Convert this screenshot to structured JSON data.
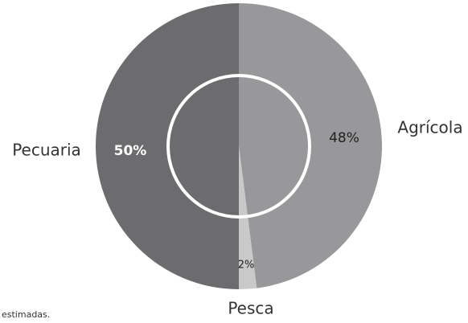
{
  "chart_data": {
    "type": "pie",
    "categories": [
      "Agrícola",
      "Pesca",
      "Pecuaria"
    ],
    "values": [
      48,
      2,
      50
    ],
    "value_labels": [
      "48%",
      "2%",
      "50%"
    ],
    "colors": [
      "#98989a",
      "#c9c9ca",
      "#6c6c6e"
    ],
    "note": "estimadas."
  }
}
